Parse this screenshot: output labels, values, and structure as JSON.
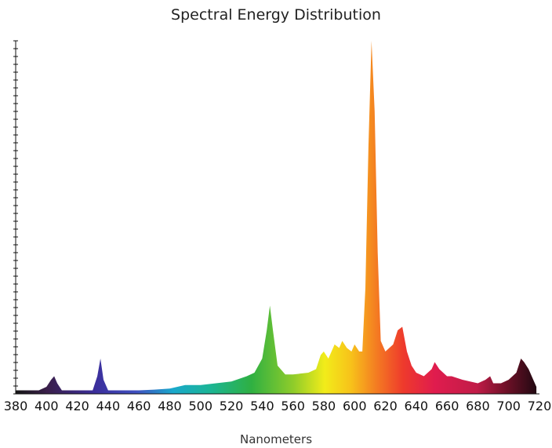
{
  "chart_data": {
    "type": "area",
    "title": "Spectral Energy Distribution",
    "xlabel": "Nanometers",
    "ylabel": "",
    "xlim": [
      380,
      720
    ],
    "ylim": [
      0,
      100
    ],
    "x_ticks": [
      380,
      400,
      420,
      440,
      460,
      480,
      500,
      520,
      540,
      560,
      580,
      600,
      620,
      640,
      660,
      680,
      700,
      720
    ],
    "fill": "visible-spectrum gradient",
    "series": [
      {
        "x": [
          380,
          395,
          400,
          403,
          405,
          407,
          410,
          420,
          430,
          433,
          435,
          437,
          440,
          450,
          460,
          470,
          480,
          485,
          490,
          500,
          510,
          520,
          530,
          535,
          540,
          543,
          545,
          547,
          550,
          555,
          560,
          570,
          575,
          578,
          580,
          583,
          585,
          587,
          590,
          592,
          595,
          598,
          600,
          603,
          605,
          607,
          609,
          611,
          613,
          615,
          617,
          620,
          625,
          628,
          631,
          634,
          637,
          640,
          645,
          650,
          652,
          655,
          660,
          663,
          670,
          680,
          685,
          688,
          690,
          695,
          700,
          705,
          708,
          710,
          713,
          716,
          718
        ],
        "y": [
          1,
          1,
          2,
          4,
          5,
          3,
          1,
          1,
          1,
          5,
          10,
          4,
          1,
          1,
          1,
          1.2,
          1.5,
          2,
          2.5,
          2.5,
          3,
          3.5,
          5,
          6,
          10,
          18,
          25,
          18,
          8,
          5.5,
          5.5,
          6,
          7,
          11,
          12,
          10,
          12,
          14,
          13,
          15,
          13,
          12,
          14,
          12,
          12,
          30,
          70,
          100,
          80,
          40,
          15,
          12,
          14,
          18,
          19,
          12,
          8,
          6,
          5,
          7,
          9,
          7,
          5,
          5,
          4,
          3,
          4,
          5,
          3,
          3,
          4,
          6,
          10,
          9,
          7,
          4,
          2
        ]
      }
    ]
  }
}
